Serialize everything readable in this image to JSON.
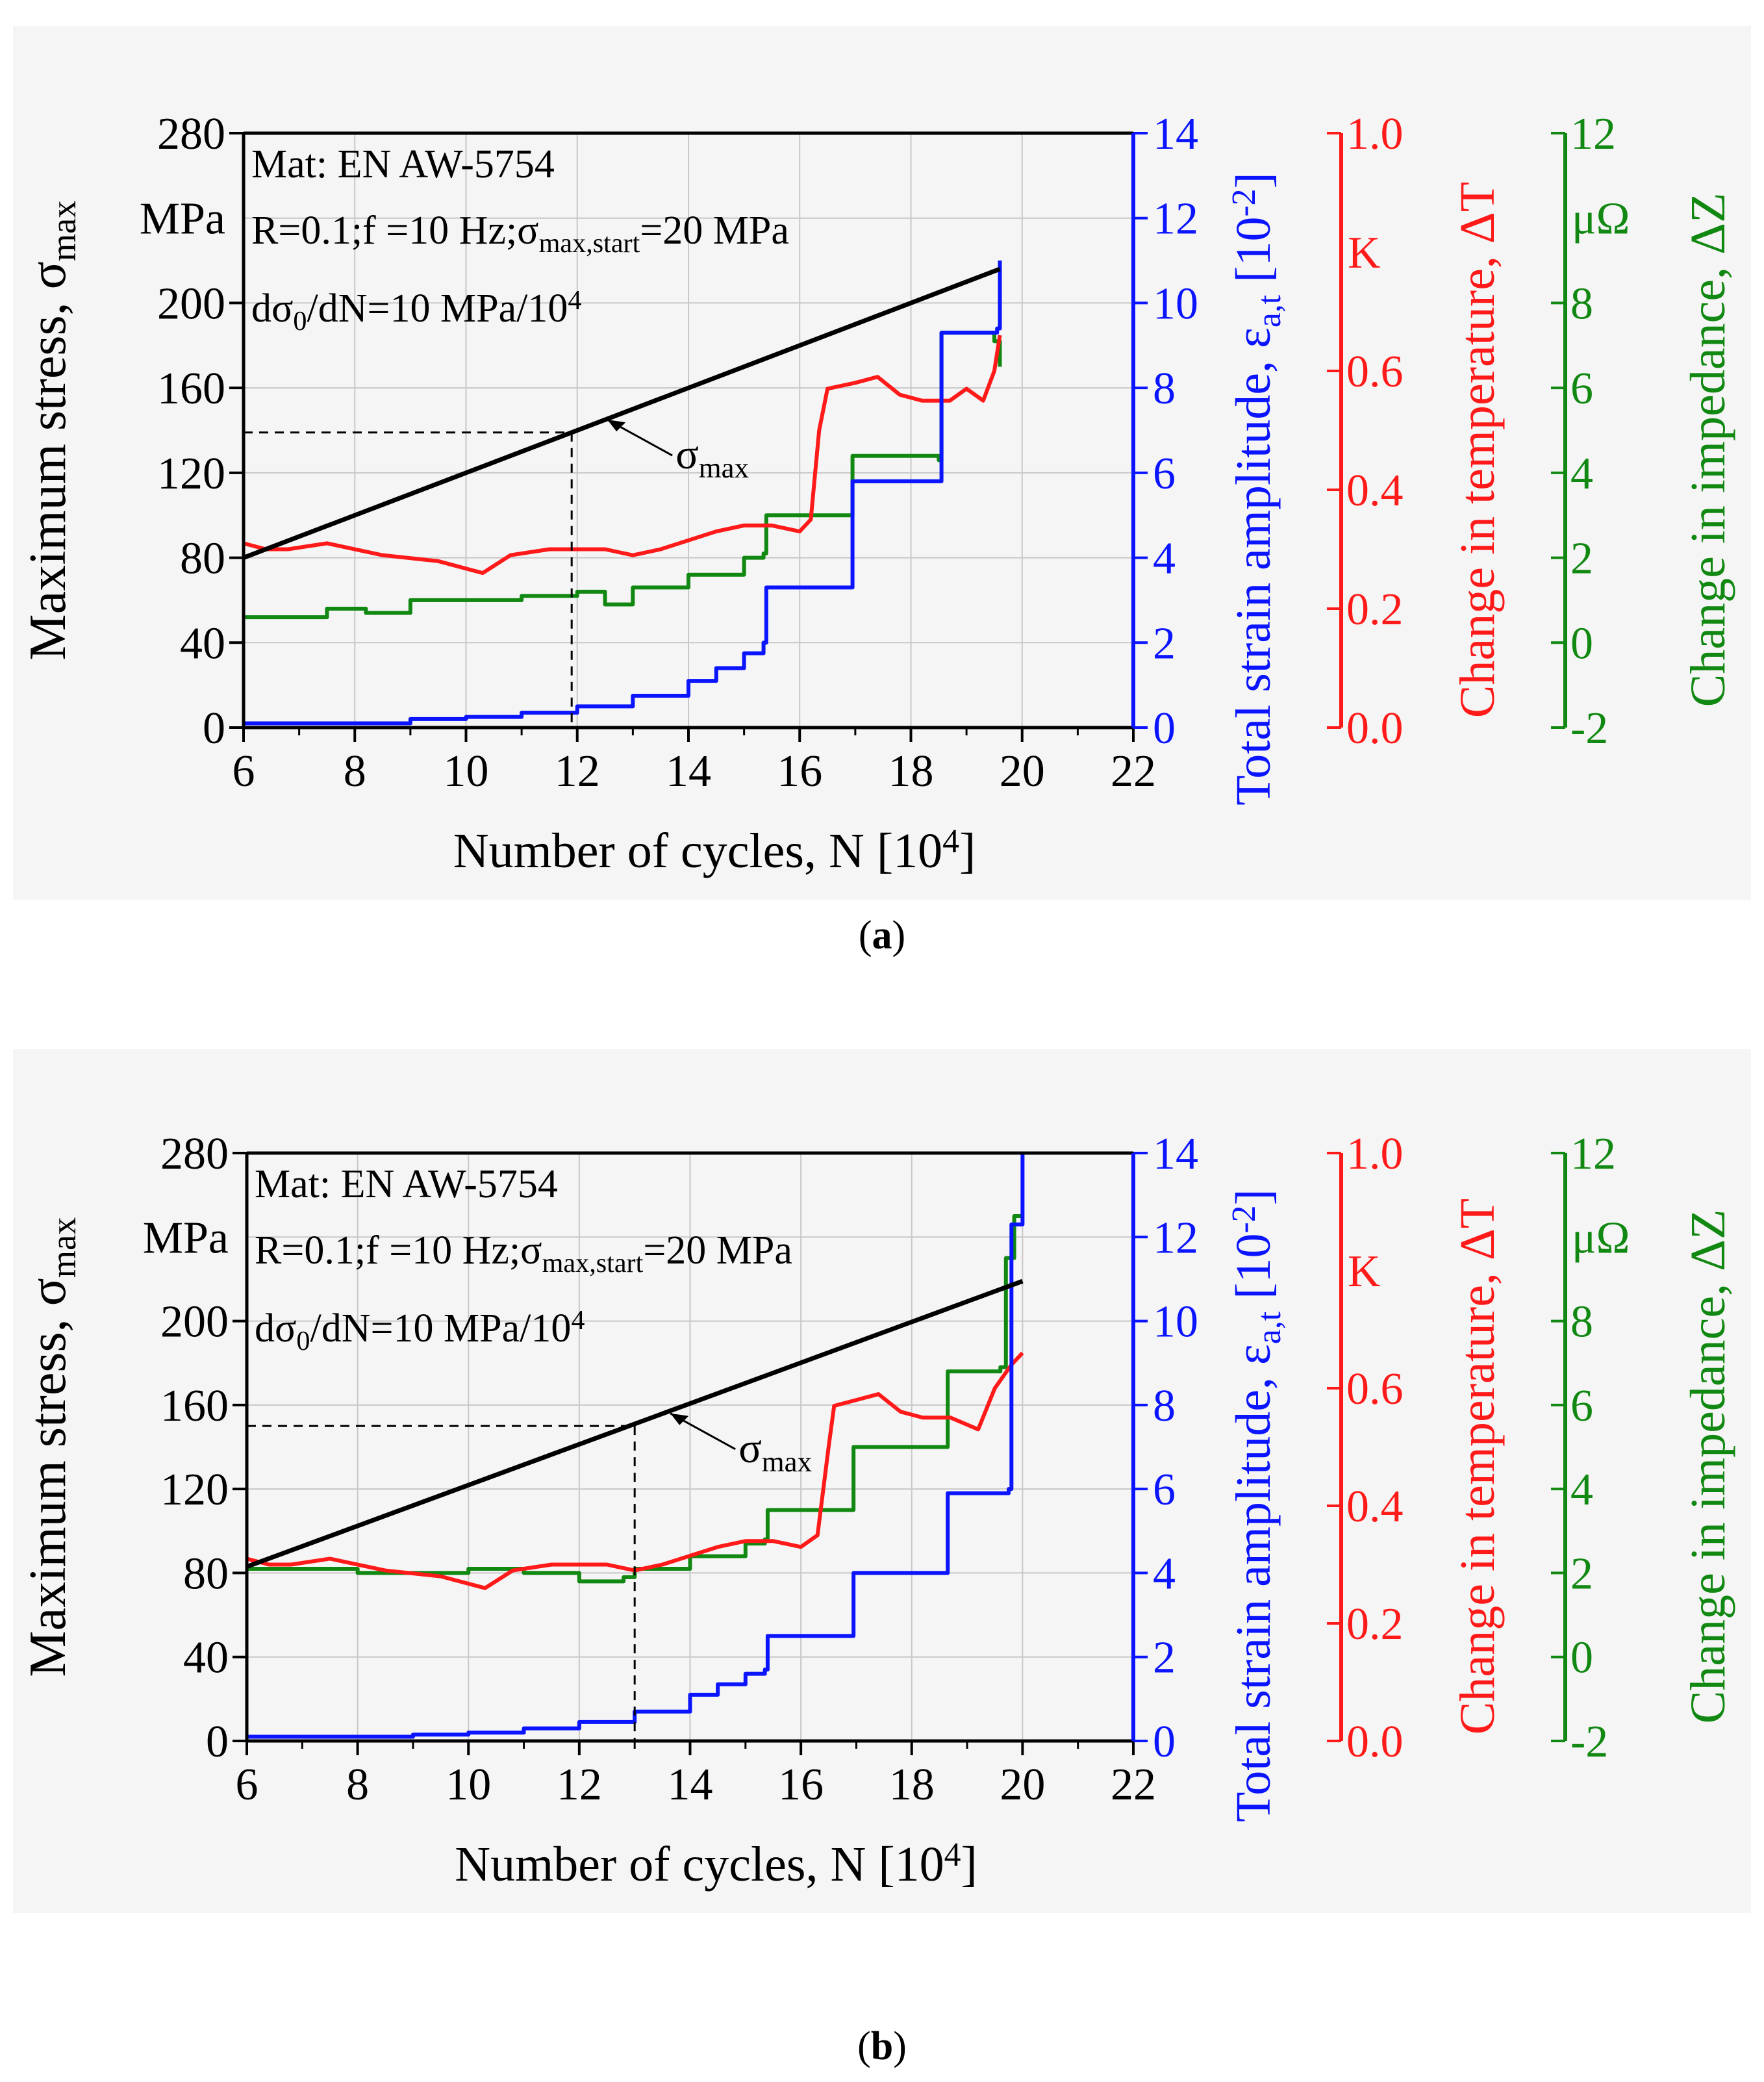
{
  "colors": {
    "stress": "#000000",
    "strain": "#0a14ff",
    "temperature": "#ff1a1a",
    "impedance": "#118811",
    "grid": "#c8c8c8",
    "background": "#f5f5f5"
  },
  "chart_data": [
    {
      "type": "line",
      "caption": "a",
      "title": "",
      "annotations": {
        "material": "Mat: EN AW-5754",
        "conditions_pre": "R=0.1;f =10 Hz;σ",
        "conditions_sub": "max,start",
        "conditions_post": "=20 MPa",
        "rate_pre": "dσ",
        "rate_sub": "0",
        "rate_mid": "/dN=10 MPa/10",
        "rate_sup": "4",
        "sigma_label": "σ",
        "sigma_sub": "max"
      },
      "xlabel": {
        "text": "Number of cycles, N [10",
        "sup": "4",
        "close": "]"
      },
      "xlim": [
        6,
        22
      ],
      "xticks": [
        "6",
        "8",
        "10",
        "12",
        "14",
        "16",
        "18",
        "20",
        "22"
      ],
      "ylabel_left": {
        "text": "Maximum stress, σ",
        "sub": "max",
        "unit": "MPa"
      },
      "ylim_left": [
        0,
        280
      ],
      "yticks_left": [
        "0",
        "40",
        "80",
        "120",
        "160",
        "200",
        "280"
      ],
      "ylabel_strain": {
        "text": "Total strain amplitude, ε",
        "sub": "a,t",
        "unit": "[10",
        "sup": "-2",
        "close": "]"
      },
      "ylim_strain": [
        0,
        14
      ],
      "yticks_strain": [
        "0",
        "2",
        "4",
        "6",
        "8",
        "10",
        "12",
        "14"
      ],
      "ylabel_temp": {
        "text": "Change in temperature, ΔT",
        "unit": "K"
      },
      "ylim_temp": [
        0,
        1
      ],
      "yticks_temp": [
        "0.0",
        "0.2",
        "0.4",
        "0.6",
        "1.0"
      ],
      "ylabel_imp": {
        "text": "Change in impedance, ΔZ",
        "unit": "μΩ"
      },
      "ylim_imp": [
        -2,
        12
      ],
      "yticks_imp": [
        "-2",
        "0",
        "2",
        "4",
        "6",
        "8",
        "12"
      ],
      "marker": {
        "x": 11.9,
        "y": 139
      },
      "series": [
        {
          "name": "σmax",
          "axis": "stress",
          "x": [
            6,
            19.6
          ],
          "values": [
            80,
            216
          ]
        },
        {
          "name": "εa,t",
          "axis": "strain",
          "step": true,
          "x": [
            6,
            9,
            10,
            11,
            12,
            13,
            14,
            14.5,
            15.0,
            15.35,
            15.4,
            16.9,
            16.95,
            18.5,
            18.55,
            19.55,
            19.6
          ],
          "values": [
            0.1,
            0.2,
            0.25,
            0.35,
            0.5,
            0.75,
            1.1,
            1.4,
            1.75,
            2.0,
            3.3,
            3.3,
            5.8,
            5.8,
            9.3,
            9.4,
            11
          ]
        },
        {
          "name": "ΔT",
          "axis": "temperature",
          "x": [
            6,
            6.4,
            6.8,
            7.5,
            8.5,
            9.5,
            10.3,
            10.8,
            11.5,
            12.5,
            13.0,
            13.5,
            14.5,
            15.0,
            15.5,
            16.0,
            16.2,
            16.35,
            16.5,
            17.0,
            17.4,
            17.8,
            18.2,
            18.7,
            19.0,
            19.3,
            19.5,
            19.6
          ],
          "values": [
            0.31,
            0.3,
            0.3,
            0.31,
            0.29,
            0.28,
            0.26,
            0.29,
            0.3,
            0.3,
            0.29,
            0.3,
            0.33,
            0.34,
            0.34,
            0.33,
            0.35,
            0.5,
            0.57,
            0.58,
            0.59,
            0.56,
            0.55,
            0.55,
            0.57,
            0.55,
            0.6,
            0.66
          ]
        },
        {
          "name": "ΔZ",
          "axis": "impedance",
          "step": true,
          "x": [
            6,
            7.5,
            8.2,
            9,
            10,
            11,
            12,
            12.5,
            13,
            14,
            15,
            15.35,
            15.4,
            16.9,
            16.95,
            18.5,
            18.55,
            19.5,
            19.6
          ],
          "values": [
            0.6,
            0.8,
            0.7,
            1.0,
            1.0,
            1.1,
            1.2,
            0.9,
            1.3,
            1.6,
            2.0,
            2.1,
            3.0,
            3.0,
            4.4,
            4.3,
            7.3,
            7.1,
            6.5
          ]
        }
      ]
    },
    {
      "type": "line",
      "caption": "b",
      "title": "",
      "annotations": {
        "material": "Mat: EN AW-5754",
        "conditions_pre": "R=0.1;f =10 Hz;σ",
        "conditions_sub": "max,start",
        "conditions_post": "=20 MPa",
        "rate_pre": "dσ",
        "rate_sub": "0",
        "rate_mid": "/dN=10 MPa/10",
        "rate_sup": "4",
        "sigma_label": "σ",
        "sigma_sub": "max"
      },
      "xlabel": {
        "text": "Number of cycles, N [10",
        "sup": "4",
        "close": "]"
      },
      "xlim": [
        6,
        22
      ],
      "xticks": [
        "6",
        "8",
        "10",
        "12",
        "14",
        "16",
        "18",
        "20",
        "22"
      ],
      "ylabel_left": {
        "text": "Maximum stress, σ",
        "sub": "max",
        "unit": "MPa"
      },
      "ylim_left": [
        0,
        280
      ],
      "yticks_left": [
        "0",
        "40",
        "80",
        "120",
        "160",
        "200",
        "280"
      ],
      "ylabel_strain": {
        "text": "Total strain amplitude, ε",
        "sub": "a,t",
        "unit": "[10",
        "sup": "-2",
        "close": "]"
      },
      "ylim_strain": [
        0,
        14
      ],
      "yticks_strain": [
        "0",
        "2",
        "4",
        "6",
        "8",
        "10",
        "12",
        "14"
      ],
      "ylabel_temp": {
        "text": "Change in temperature, ΔT",
        "unit": "K"
      },
      "ylim_temp": [
        0,
        1
      ],
      "yticks_temp": [
        "0.0",
        "0.2",
        "0.4",
        "0.6",
        "1.0"
      ],
      "ylabel_imp": {
        "text": "Change in impedance, ΔZ",
        "unit": "μΩ"
      },
      "ylim_imp": [
        -2,
        12
      ],
      "yticks_imp": [
        "-2",
        "0",
        "2",
        "4",
        "6",
        "8",
        "12"
      ],
      "marker": {
        "x": 13.0,
        "y": 150
      },
      "series": [
        {
          "name": "σmax",
          "axis": "stress",
          "x": [
            6,
            20.0
          ],
          "values": [
            83,
            219
          ]
        },
        {
          "name": "εa,t",
          "axis": "strain",
          "step": true,
          "x": [
            6,
            9,
            10,
            11,
            12,
            13,
            14,
            14.5,
            15.0,
            15.35,
            15.4,
            16.9,
            16.95,
            18.6,
            18.65,
            19.75,
            19.8,
            19.95,
            20.0
          ],
          "values": [
            0.1,
            0.15,
            0.2,
            0.3,
            0.45,
            0.7,
            1.1,
            1.35,
            1.6,
            1.7,
            2.5,
            2.5,
            4.0,
            4.0,
            5.9,
            6.0,
            12.3,
            12.3,
            14
          ]
        },
        {
          "name": "ΔT",
          "axis": "temperature",
          "x": [
            6,
            6.4,
            6.8,
            7.5,
            8.5,
            9.5,
            10.3,
            10.8,
            11.5,
            12.5,
            13.0,
            13.5,
            14.5,
            15.0,
            15.5,
            16.0,
            16.3,
            16.5,
            16.6,
            17.0,
            17.4,
            17.8,
            18.2,
            18.7,
            19.2,
            19.5,
            19.8,
            20.0
          ],
          "values": [
            0.31,
            0.3,
            0.3,
            0.31,
            0.29,
            0.28,
            0.26,
            0.29,
            0.3,
            0.3,
            0.29,
            0.3,
            0.33,
            0.34,
            0.34,
            0.33,
            0.35,
            0.5,
            0.57,
            0.58,
            0.59,
            0.56,
            0.55,
            0.55,
            0.53,
            0.6,
            0.64,
            0.66
          ]
        },
        {
          "name": "ΔZ",
          "axis": "impedance",
          "step": true,
          "x": [
            6,
            8,
            10,
            11,
            12,
            12.8,
            13,
            14,
            15,
            15.35,
            15.4,
            16.9,
            16.95,
            18.6,
            18.65,
            19.6,
            19.7,
            19.85,
            20.0
          ],
          "values": [
            2.1,
            2.0,
            2.1,
            2.0,
            1.8,
            1.9,
            2.1,
            2.4,
            2.7,
            2.8,
            3.5,
            3.5,
            5.0,
            5.0,
            6.8,
            6.9,
            9.5,
            10.5,
            10.5
          ]
        }
      ]
    }
  ]
}
